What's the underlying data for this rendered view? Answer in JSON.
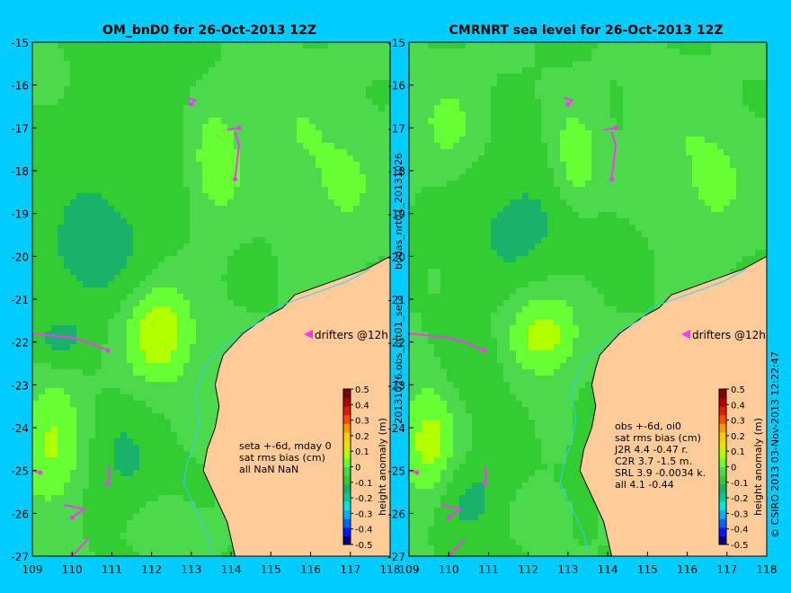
{
  "colors": {
    "background": "#00ccff",
    "land": "#ffcc99",
    "coast": "#000000",
    "drifter": "#ff33ff",
    "contour_levels": [
      "#00007f",
      "#0019ff",
      "#0066ff",
      "#00b2ff",
      "#00e5e5",
      "#00cc99",
      "#1ab26b",
      "#33cc33",
      "#4cd94c",
      "#66ff33",
      "#b2ff00",
      "#e5e500",
      "#ffcc00",
      "#ff9900",
      "#ff4c00",
      "#e51a00",
      "#b20000",
      "#7f0000"
    ]
  },
  "chart_data": [
    {
      "type": "heatmap",
      "title": "OM_bnD0 for 26-Oct-2013 12Z",
      "xlim": [
        109,
        118
      ],
      "ylim": [
        -27,
        -15
      ],
      "x_ticks": [
        "109",
        "110",
        "111",
        "112",
        "113",
        "114",
        "115",
        "116",
        "117",
        "118"
      ],
      "y_ticks": [
        "-15",
        "-16",
        "-17",
        "-18",
        "-19",
        "-20",
        "-21",
        "-22",
        "-23",
        "-24",
        "-25",
        "-26",
        "-27"
      ],
      "colorbar": {
        "label": "height anomaly (m)",
        "ticks": [
          "0.5",
          "0.4",
          "0.3",
          "0.2",
          "0.1",
          "0",
          "-0.1",
          "-0.2",
          "-0.3",
          "-0.4",
          "-0.5"
        ],
        "range": [
          -0.5,
          0.5
        ]
      },
      "stats_lines": [
        "seta +-6d, mday 0",
        "sat rms bias (cm)",
        "all NaN NaN"
      ],
      "legend": "drifters @12h",
      "side_label": "bodas_nrt01_20131026",
      "features": [
        {
          "x": 111.5,
          "y": -17.3,
          "v": -0.05,
          "sx": 1.8,
          "sy": 2.5
        },
        {
          "x": 113.6,
          "y": -17.8,
          "v": 0.12,
          "sx": 0.7,
          "sy": 1.4
        },
        {
          "x": 112.2,
          "y": -21.8,
          "v": 0.18,
          "sx": 0.9,
          "sy": 1.2
        },
        {
          "x": 109.5,
          "y": -24.4,
          "v": 0.13,
          "sx": 0.8,
          "sy": 1.6
        },
        {
          "x": 115.5,
          "y": -17.0,
          "v": 0.05,
          "sx": 1.0,
          "sy": 1.5
        },
        {
          "x": 116.8,
          "y": -18.3,
          "v": 0.07,
          "sx": 1.0,
          "sy": 1.5
        },
        {
          "x": 110.4,
          "y": -20.0,
          "v": -0.08,
          "sx": 1.5,
          "sy": 1.5
        },
        {
          "x": 109.6,
          "y": -22.0,
          "v": -0.07,
          "sx": 0.8,
          "sy": 0.6
        },
        {
          "x": 111.3,
          "y": -24.8,
          "v": -0.07,
          "sx": 1.0,
          "sy": 1.3
        },
        {
          "x": 112.3,
          "y": -26.2,
          "v": 0.05,
          "sx": 0.8,
          "sy": 0.6
        },
        {
          "x": 109.2,
          "y": -15.6,
          "v": 0.07,
          "sx": 0.6,
          "sy": 0.6
        }
      ]
    },
    {
      "type": "heatmap",
      "title": "CMRNRT sea level  for 26-Oct-2013 12Z",
      "xlim": [
        109,
        118
      ],
      "ylim": [
        -27,
        -15
      ],
      "x_ticks": [
        "109",
        "110",
        "111",
        "112",
        "113",
        "114",
        "115",
        "116",
        "117",
        "118"
      ],
      "y_ticks": [
        "-15",
        "-16",
        "-17",
        "-18",
        "-19",
        "-20",
        "-21",
        "-22",
        "-23",
        "-24",
        "-25",
        "-26",
        "-27"
      ],
      "colorbar": {
        "label": "height anomaly (m)",
        "ticks": [
          "0.5",
          "0.4",
          "0.3",
          "0.2",
          "0.1",
          "0",
          "-0.1",
          "-0.2",
          "-0.3",
          "-0.4",
          "-0.5"
        ],
        "range": [
          -0.5,
          0.5
        ]
      },
      "stats_lines": [
        "obs +-6d, oi0",
        "sat rms bias (cm)",
        "J2R   4.4 -0.47 r.",
        "C2R   3.7 -1.5 m.",
        "SRL   3.9 -0.0034 k.",
        "all   4.1 -0.44"
      ],
      "legend": "drifters @12h",
      "side_label": "20131026.obs_nrt01_seta",
      "side_label_right": "© CSIRO 2013   03-Nov-2013 12:22:47",
      "features": [
        {
          "x": 111.8,
          "y": -19.2,
          "v": -0.08,
          "sx": 1.6,
          "sy": 1.6
        },
        {
          "x": 113.2,
          "y": -17.8,
          "v": 0.12,
          "sx": 0.6,
          "sy": 1.2
        },
        {
          "x": 112.4,
          "y": -21.8,
          "v": 0.16,
          "sx": 0.9,
          "sy": 1.0
        },
        {
          "x": 109.5,
          "y": -24.4,
          "v": 0.15,
          "sx": 0.7,
          "sy": 1.4
        },
        {
          "x": 110.0,
          "y": -17.0,
          "v": 0.08,
          "sx": 0.8,
          "sy": 1.2
        },
        {
          "x": 116.6,
          "y": -18.2,
          "v": 0.08,
          "sx": 1.0,
          "sy": 1.5
        },
        {
          "x": 115.4,
          "y": -16.8,
          "v": 0.04,
          "sx": 0.8,
          "sy": 1.2
        },
        {
          "x": 110.7,
          "y": -22.6,
          "v": -0.06,
          "sx": 0.7,
          "sy": 1.0
        },
        {
          "x": 110.6,
          "y": -25.7,
          "v": -0.08,
          "sx": 1.0,
          "sy": 1.0
        },
        {
          "x": 114.0,
          "y": -24.0,
          "v": -0.04,
          "sx": 0.8,
          "sy": 1.0
        },
        {
          "x": 112.2,
          "y": -26.0,
          "v": 0.05,
          "sx": 0.7,
          "sy": 0.6
        }
      ]
    }
  ],
  "coastline": [
    [
      118,
      -20.0
    ],
    [
      117.4,
      -20.3
    ],
    [
      116.8,
      -20.5
    ],
    [
      116.2,
      -20.7
    ],
    [
      115.6,
      -20.9
    ],
    [
      115.3,
      -21.2
    ],
    [
      114.9,
      -21.4
    ],
    [
      114.6,
      -21.6
    ],
    [
      114.3,
      -21.8
    ],
    [
      114.1,
      -22.0
    ],
    [
      113.8,
      -22.3
    ],
    [
      113.7,
      -22.6
    ],
    [
      113.6,
      -23.0
    ],
    [
      113.7,
      -23.5
    ],
    [
      113.6,
      -24.0
    ],
    [
      113.4,
      -24.5
    ],
    [
      113.3,
      -25.0
    ],
    [
      113.6,
      -25.6
    ],
    [
      113.9,
      -26.2
    ],
    [
      114.0,
      -26.6
    ],
    [
      114.1,
      -27.0
    ],
    [
      118,
      -27.0
    ]
  ],
  "drifter_tracks": [
    [
      [
        109.0,
        -21.8
      ],
      [
        109.5,
        -21.85
      ],
      [
        110.0,
        -21.9
      ],
      [
        110.4,
        -22.0
      ],
      [
        110.9,
        -22.2
      ]
    ],
    [
      [
        114.1,
        -17.1
      ],
      [
        114.2,
        -17.4
      ],
      [
        114.15,
        -17.8
      ],
      [
        114.1,
        -18.2
      ]
    ],
    [
      [
        113.9,
        -17.05
      ],
      [
        114.2,
        -17.0
      ]
    ],
    [
      [
        110.9,
        -24.9
      ],
      [
        110.95,
        -25.1
      ],
      [
        110.9,
        -25.3
      ]
    ],
    [
      [
        109.8,
        -25.8
      ],
      [
        110.3,
        -25.9
      ],
      [
        110.0,
        -26.1
      ]
    ],
    [
      [
        110.4,
        -26.6
      ],
      [
        110.2,
        -26.8
      ],
      [
        110.0,
        -27.0
      ]
    ],
    [
      [
        112.9,
        -16.3
      ],
      [
        113.1,
        -16.35
      ],
      [
        113.0,
        -16.45
      ]
    ],
    [
      [
        109.0,
        -25.0
      ],
      [
        109.2,
        -25.05
      ]
    ]
  ]
}
